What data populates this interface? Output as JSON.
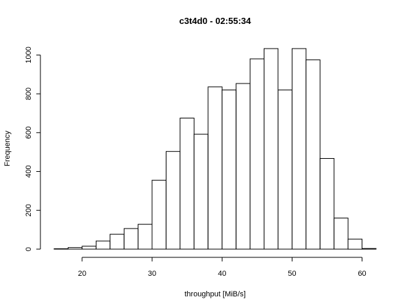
{
  "chart_data": {
    "type": "bar",
    "title": "c3t4d0 - 02:55:34",
    "xlabel": "throughput [MiB/s]",
    "ylabel": "Frequency",
    "bin_edges": [
      16,
      18,
      20,
      22,
      24,
      26,
      28,
      30,
      32,
      34,
      36,
      38,
      40,
      42,
      44,
      46,
      48,
      50,
      52,
      54,
      56,
      58,
      60,
      62
    ],
    "values": [
      2,
      8,
      15,
      42,
      77,
      106,
      128,
      355,
      503,
      675,
      592,
      836,
      820,
      853,
      980,
      1033,
      820,
      1033,
      975,
      467,
      160,
      52,
      3
    ],
    "xlim": [
      16,
      62
    ],
    "ylim": [
      0,
      1040
    ],
    "x_ticks": [
      20,
      30,
      40,
      50,
      60
    ],
    "x_tick_labels": [
      "20",
      "30",
      "40",
      "50",
      "60"
    ],
    "y_ticks": [
      0,
      200,
      400,
      600,
      800,
      1000
    ],
    "y_tick_labels": [
      "0",
      "200",
      "400",
      "600",
      "800",
      "1000"
    ],
    "grid": false,
    "legend": "none"
  }
}
